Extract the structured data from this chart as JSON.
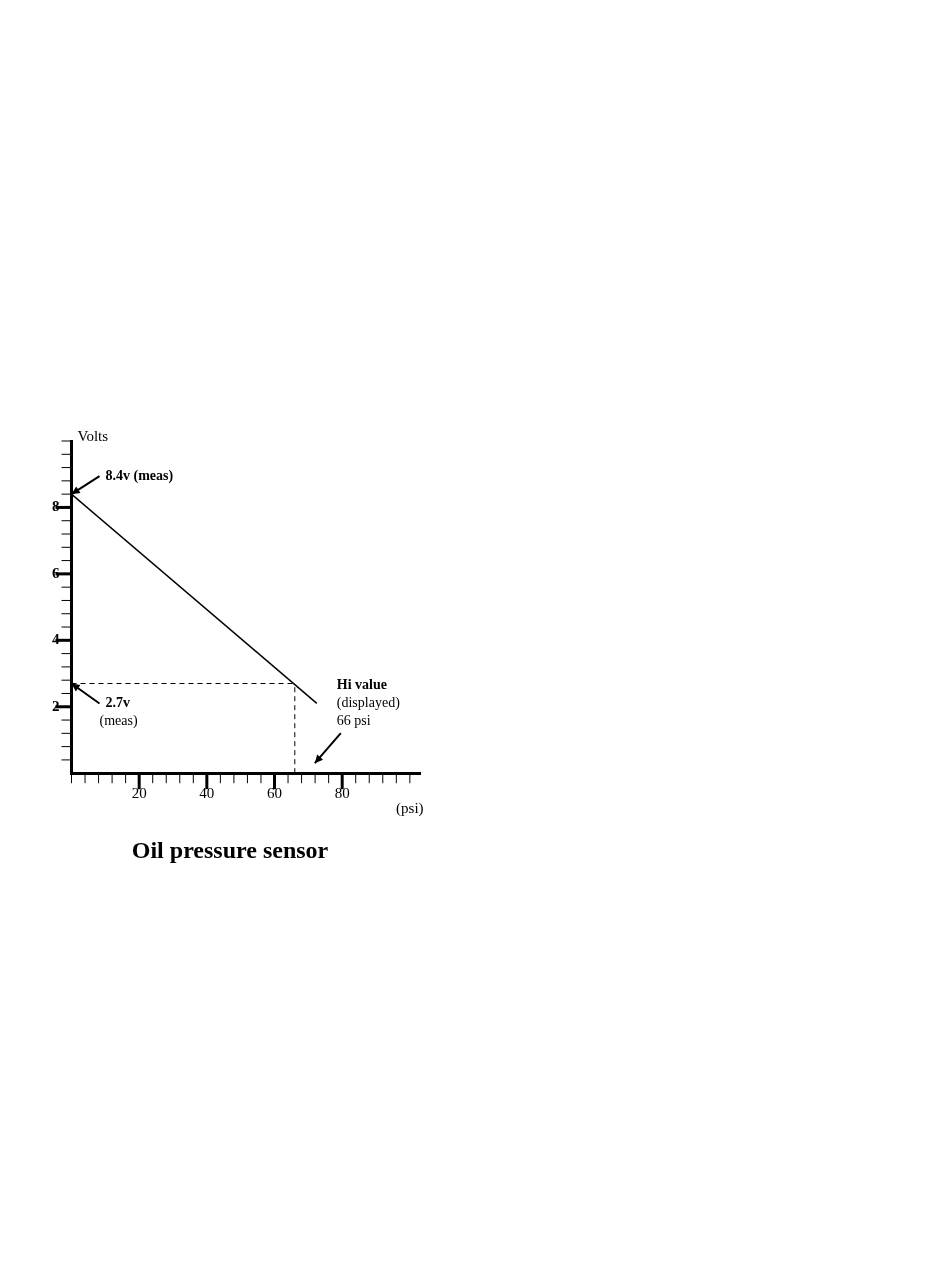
{
  "chart_data": {
    "type": "line",
    "title": "Oil pressure sensor",
    "xlabel": "(psi)",
    "ylabel": "Volts",
    "x": [
      0,
      72.5
    ],
    "series": [
      {
        "color": "#000000",
        "values": [
          8.4,
          2.1
        ]
      }
    ],
    "xlim": [
      0,
      103
    ],
    "ylim": [
      0,
      10
    ],
    "xticks": [
      {
        "value": 0,
        "label": null
      },
      {
        "value": 4,
        "label": null
      },
      {
        "value": 8,
        "label": null
      },
      {
        "value": 12,
        "label": null
      },
      {
        "value": 16,
        "label": null
      },
      20,
      {
        "value": 24,
        "label": null
      },
      {
        "value": 28,
        "label": null
      },
      {
        "value": 32,
        "label": null
      },
      {
        "value": 36,
        "label": null
      },
      40,
      {
        "value": 44,
        "label": null
      },
      {
        "value": 48,
        "label": null
      },
      {
        "value": 52,
        "label": null
      },
      {
        "value": 56,
        "label": null
      },
      60,
      {
        "value": 64,
        "label": null
      },
      {
        "value": 68,
        "label": null
      },
      {
        "value": 72,
        "label": null
      },
      {
        "value": 76,
        "label": null
      },
      80,
      {
        "value": 84,
        "label": null
      },
      {
        "value": 88,
        "label": null
      },
      {
        "value": 92,
        "label": null
      },
      {
        "value": 96,
        "label": null
      },
      {
        "value": 100,
        "label": null
      }
    ],
    "yticks": [
      {
        "value": 0.4,
        "label": null
      },
      {
        "value": 0.8,
        "label": null
      },
      {
        "value": 1.2,
        "label": null
      },
      {
        "value": 1.6,
        "label": null
      },
      2,
      {
        "value": 2.4,
        "label": null
      },
      {
        "value": 2.8,
        "label": null
      },
      {
        "value": 3.2,
        "label": null
      },
      {
        "value": 3.6,
        "label": null
      },
      4,
      {
        "value": 4.4,
        "label": null
      },
      {
        "value": 4.8,
        "label": null
      },
      {
        "value": 5.2,
        "label": null
      },
      {
        "value": 5.6,
        "label": null
      },
      6,
      {
        "value": 6.4,
        "label": null
      },
      {
        "value": 6.8,
        "label": null
      },
      {
        "value": 7.2,
        "label": null
      },
      {
        "value": 7.6,
        "label": null
      },
      8,
      {
        "value": 8.4,
        "label": null
      },
      {
        "value": 8.8,
        "label": null
      },
      {
        "value": 9.2,
        "label": null
      },
      {
        "value": 9.6,
        "label": null
      },
      {
        "value": 10,
        "label": null
      }
    ],
    "ref_lines": [
      {
        "axis": "y",
        "value": 2.7,
        "color": "#000000",
        "line_style": "dashed"
      },
      {
        "axis": "x",
        "value": 66,
        "color": "#000000",
        "line_style": "dashed"
      }
    ],
    "annotations": [
      {
        "text": "8.4v (meas)",
        "x": 0,
        "y": 8.4
      },
      {
        "text": "2.7v\n(meas)",
        "x": 0,
        "y": 2.7
      },
      "Hi value\n(displayed)\n66 psi"
    ],
    "grid": false,
    "legend": false,
    "marker": "none",
    "line_style": "solid"
  }
}
